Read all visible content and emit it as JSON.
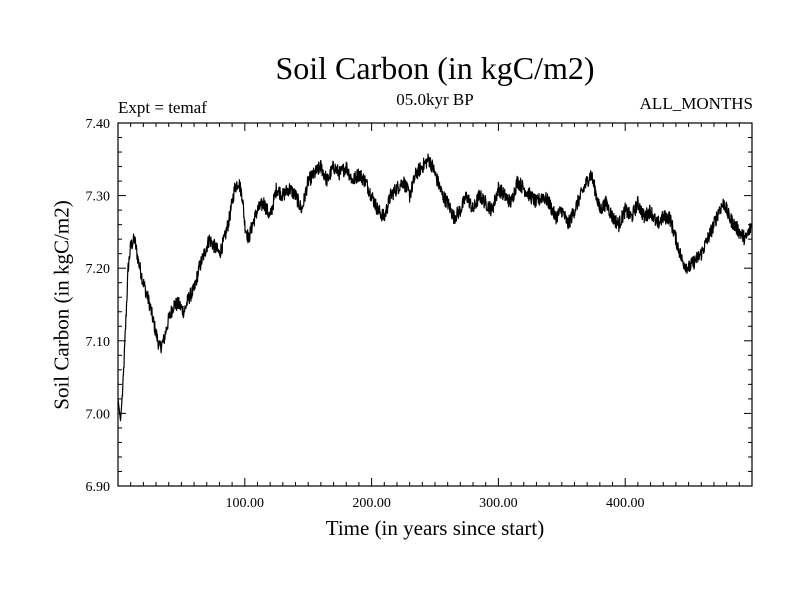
{
  "header": {
    "title": "Soil Carbon (in kgC/m2)",
    "subtitle": "05.0kyr BP",
    "experiment": "Expt = temaf",
    "period": "ALL_MONTHS"
  },
  "chart_data": {
    "type": "line",
    "title": "Soil Carbon (in kgC/m2)",
    "xlabel": "Time (in years since start)",
    "ylabel": "Soil Carbon (in kgC/m2)",
    "xlim": [
      0,
      500
    ],
    "ylim": [
      6.9,
      7.4
    ],
    "x_ticks": [
      100,
      200,
      300,
      400
    ],
    "x_tick_labels": [
      "100.00",
      "200.00",
      "300.00",
      "400.00"
    ],
    "y_ticks": [
      6.9,
      7.0,
      7.1,
      7.2,
      7.3,
      7.4
    ],
    "y_tick_labels": [
      "6.90",
      "7.00",
      "7.10",
      "7.20",
      "7.30",
      "7.40"
    ],
    "grid": false,
    "series": [
      {
        "name": "Soil Carbon",
        "color": "#000000",
        "x": [
          0,
          2,
          4,
          6,
          8,
          10,
          13,
          16,
          20,
          25,
          30,
          33,
          36,
          40,
          44,
          48,
          52,
          56,
          60,
          64,
          68,
          72,
          76,
          80,
          84,
          88,
          92,
          95,
          98,
          100,
          103,
          106,
          110,
          115,
          120,
          125,
          130,
          135,
          140,
          145,
          150,
          155,
          160,
          165,
          170,
          175,
          180,
          185,
          190,
          195,
          200,
          205,
          210,
          215,
          220,
          225,
          230,
          235,
          240,
          245,
          248,
          252,
          256,
          260,
          265,
          270,
          275,
          280,
          285,
          290,
          295,
          300,
          305,
          310,
          315,
          320,
          325,
          330,
          335,
          340,
          345,
          350,
          355,
          360,
          365,
          370,
          373,
          376,
          380,
          385,
          390,
          395,
          400,
          405,
          410,
          415,
          420,
          425,
          430,
          435,
          440,
          445,
          450,
          455,
          460,
          465,
          470,
          474,
          478,
          482,
          486,
          490,
          495,
          500
        ],
        "y": [
          7.02,
          6.99,
          7.04,
          7.12,
          7.2,
          7.23,
          7.24,
          7.21,
          7.18,
          7.15,
          7.11,
          7.09,
          7.1,
          7.13,
          7.15,
          7.15,
          7.14,
          7.16,
          7.17,
          7.2,
          7.22,
          7.24,
          7.23,
          7.22,
          7.24,
          7.27,
          7.31,
          7.32,
          7.3,
          7.26,
          7.24,
          7.26,
          7.28,
          7.29,
          7.27,
          7.31,
          7.3,
          7.31,
          7.3,
          7.28,
          7.32,
          7.33,
          7.34,
          7.32,
          7.34,
          7.33,
          7.34,
          7.32,
          7.33,
          7.32,
          7.3,
          7.28,
          7.27,
          7.3,
          7.31,
          7.32,
          7.3,
          7.33,
          7.34,
          7.35,
          7.34,
          7.32,
          7.3,
          7.29,
          7.27,
          7.28,
          7.3,
          7.28,
          7.3,
          7.29,
          7.28,
          7.31,
          7.3,
          7.29,
          7.32,
          7.31,
          7.3,
          7.29,
          7.3,
          7.29,
          7.27,
          7.28,
          7.26,
          7.28,
          7.3,
          7.32,
          7.33,
          7.31,
          7.28,
          7.29,
          7.27,
          7.26,
          7.28,
          7.27,
          7.29,
          7.27,
          7.28,
          7.26,
          7.27,
          7.27,
          7.24,
          7.21,
          7.2,
          7.21,
          7.22,
          7.24,
          7.26,
          7.28,
          7.29,
          7.27,
          7.26,
          7.25,
          7.24,
          7.26
        ]
      }
    ]
  }
}
